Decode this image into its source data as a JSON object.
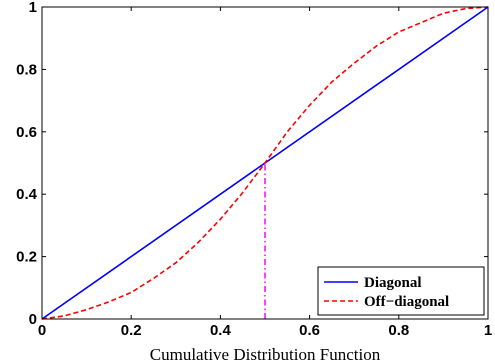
{
  "chart_data": {
    "type": "line",
    "title": "",
    "xlabel": "Cumulative Distribution Function",
    "ylabel": "",
    "xlim": [
      0,
      1
    ],
    "ylim": [
      0,
      1
    ],
    "xticks": [
      "0",
      "0.2",
      "0.4",
      "0.6",
      "0.8",
      "1"
    ],
    "yticks": [
      "0",
      "0.2",
      "0.4",
      "0.6",
      "0.8",
      "1"
    ],
    "xtick_values": [
      0,
      0.2,
      0.4,
      0.6,
      0.8,
      1
    ],
    "ytick_values": [
      0,
      0.2,
      0.4,
      0.6,
      0.8,
      1
    ],
    "grid": false,
    "legend_position": "bottom-right",
    "series": [
      {
        "name": "Diagonal",
        "color": "#0000ff",
        "style": "solid",
        "x": [
          0,
          1
        ],
        "y": [
          0,
          1
        ]
      },
      {
        "name": "Off−diagonal",
        "color": "#ff0000",
        "style": "dashed",
        "x": [
          0,
          0.05,
          0.1,
          0.15,
          0.2,
          0.25,
          0.3,
          0.35,
          0.4,
          0.45,
          0.5,
          0.55,
          0.6,
          0.65,
          0.7,
          0.75,
          0.8,
          0.85,
          0.9,
          0.95,
          1
        ],
        "y": [
          0,
          0.01,
          0.03,
          0.055,
          0.085,
          0.13,
          0.18,
          0.245,
          0.32,
          0.405,
          0.5,
          0.6,
          0.685,
          0.76,
          0.82,
          0.875,
          0.92,
          0.95,
          0.98,
          0.995,
          1
        ]
      }
    ],
    "annotations": [
      {
        "type": "vertical-line",
        "x": 0.5,
        "y_from": 0,
        "y_to": 0.5,
        "color": "#ff00ff",
        "style": "dash-dot"
      }
    ]
  }
}
